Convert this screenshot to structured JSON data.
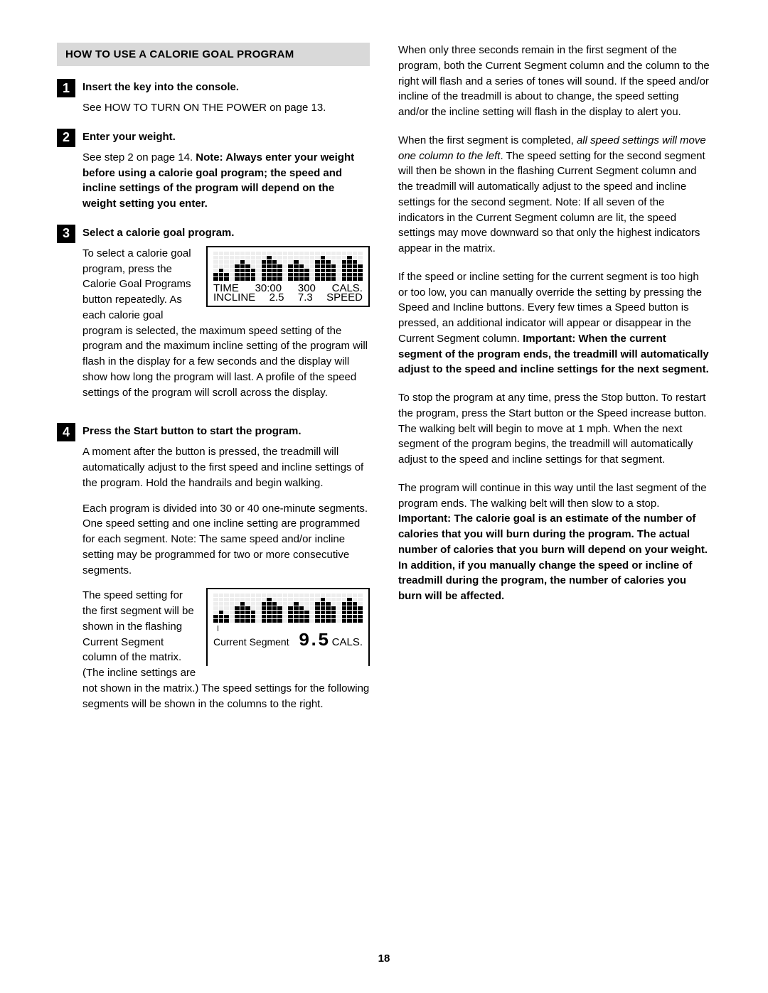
{
  "header": "HOW TO USE A CALORIE GOAL PROGRAM",
  "page_number": "18",
  "steps": [
    {
      "num": "1",
      "title": "Insert the key into the console.",
      "p1": "See HOW TO TURN ON THE POWER on page 13."
    },
    {
      "num": "2",
      "title": "Enter your weight.",
      "p1_a": "See step 2 on page 14. ",
      "p1_b": "Note: Always enter your weight before using a calorie goal program; the speed and incline settings of the program will depend on the weight setting you enter."
    },
    {
      "num": "3",
      "title": "Select a calorie goal program.",
      "p1": "To select a calorie goal program, press the Calorie Goal Programs button repeatedly. As each calorie goal program is selected, the maximum speed setting of the program and the maximum incline setting of the program will flash in the display for a few seconds and the display will show how long the program will last. A profile of the speed settings of the program will scroll across the display."
    },
    {
      "num": "4",
      "title": "Press the Start button to start the program.",
      "p1": "A moment after the button is pressed, the treadmill will automatically adjust to the first speed and incline settings of the program. Hold the handrails and begin walking.",
      "p2": "Each program is divided into 30 or 40 one-minute segments. One speed setting and one incline setting are programmed for each segment. Note: The same speed and/or incline setting may be programmed for two or more consecutive segments.",
      "p3": "The speed setting for the first segment will be shown in the flashing Current Segment column of the matrix. (The incline settings are not shown in the matrix.) The speed settings for the following segments will be shown in the columns to the right."
    }
  ],
  "col2": {
    "p1": "When only three seconds remain in the first segment of the program, both the Current Segment column and the column to the right will flash and a series of tones will sound. If the speed and/or incline of the treadmill is about to change, the speed setting and/or the incline setting will flash in the display to alert you.",
    "p2_a": "When the first segment is completed, ",
    "p2_i": "all speed settings will move one column to the left",
    "p2_b": ". The speed setting for the second segment will then be shown in the flashing Current Segment column and the treadmill will automatically adjust to the speed and incline settings for the second segment. Note: If all seven of the indicators in the Current Segment column are lit, the speed settings may move downward so that only the highest indicators appear in the matrix.",
    "p3_a": "If the speed or incline setting for the current segment is too high or too low, you can manually override the setting by pressing the Speed and Incline buttons. Every few times a Speed button is pressed, an additional indicator will appear or disappear in the Current Segment column. ",
    "p3_b": "Important: When the current segment of the program ends, the treadmill will automatically adjust to the speed and incline settings for the next segment.",
    "p4": "To stop the program at any time, press the Stop button. To restart the program, press the Start button or the Speed increase button. The walking belt will begin to move at 1 mph. When the next segment of the program begins, the treadmill will automatically adjust to the speed and incline settings for that segment.",
    "p5_a": "The program will continue in this way until the last segment of the program ends. The walking belt will then slow to a stop. ",
    "p5_b": "Important: The calorie goal is an estimate of the number of calories that you will burn during the program. The actual number of calories that you burn will depend on your weight. In addition, if you manually change the speed or incline of treadmill during the program, the number of calories you burn will be affected."
  },
  "display1": {
    "time_lbl": "TIME",
    "time_val": "30:00",
    "cals_lbl": "CALS.",
    "cals_val": "300",
    "incline_lbl": "INCLINE",
    "incline_val": "2.5",
    "speed_lbl": "SPEED",
    "speed_val": "7.3",
    "matrix_heights": [
      2,
      3,
      2,
      0,
      4,
      5,
      4,
      3,
      0,
      5,
      6,
      5,
      4,
      0,
      4,
      5,
      4,
      3,
      0,
      5,
      6,
      5,
      4,
      0,
      5,
      6,
      5,
      4
    ]
  },
  "display2": {
    "cs_label": "Current Segment",
    "cals_lbl": "CALS.",
    "cals_val": "9.5",
    "matrix_heights": [
      2,
      3,
      2,
      0,
      4,
      5,
      4,
      3,
      0,
      5,
      6,
      5,
      4,
      0,
      4,
      5,
      4,
      3,
      0,
      5,
      6,
      5,
      4,
      0,
      5,
      6,
      5,
      4
    ]
  }
}
